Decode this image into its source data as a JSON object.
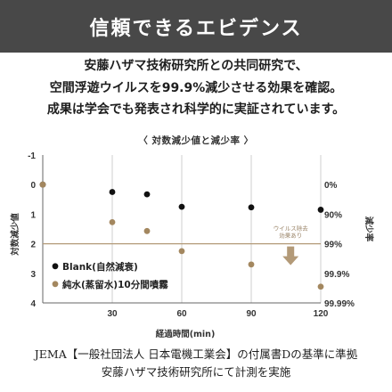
{
  "banner": {
    "title": "信頼できるエビデンス"
  },
  "intro": {
    "lines": [
      "安藤ハザマ技術研究所との共同研究で、",
      "空間浮遊ウイルスを99.9%減少させる効果を確認。",
      "成果は学会でも発表され科学的に実証されています。"
    ]
  },
  "footer": {
    "lines": [
      "JEMA【一般社団法人 日本電機工業会】の付属書Dの基準に準拠",
      "安藤ハザマ技術研究所にて計測を実施"
    ]
  },
  "colors": {
    "banner_bg": "#484848",
    "blank": "#111111",
    "treated": "#a3875f",
    "threshold": "#b39a78",
    "grid": "#cfcfcf"
  },
  "chart_data": {
    "type": "scatter",
    "title": "〈 対数減少値と減少率 〉",
    "xlabel": "経過時間(min)",
    "ylabel_left": "対数減少値",
    "ylabel_right": "減少率",
    "x_ticks": [
      0,
      30,
      60,
      90,
      120
    ],
    "xlim": [
      0,
      120
    ],
    "ylim": [
      -1,
      4
    ],
    "y_inverted": true,
    "y_ticks_left": [
      "-1",
      "0",
      "1",
      "2",
      "3",
      "4"
    ],
    "y_ticks_left_values": [
      -1,
      0,
      1,
      2,
      3,
      4
    ],
    "y_ticks_right": [
      "0%",
      "90%",
      "99%",
      "99.9%",
      "99.99%"
    ],
    "y_ticks_right_values": [
      0,
      1,
      2,
      3,
      4
    ],
    "grid": "vertical",
    "legend_position": "bottom-left",
    "threshold_line": {
      "y": 2
    },
    "annotation": {
      "lines": [
        "ウイルス除去",
        "効果あり"
      ],
      "x": 107,
      "y": 2
    },
    "series": [
      {
        "name": "Blank(自然減衰)",
        "marker": "black",
        "x": [
          0,
          30,
          45,
          60,
          90,
          120
        ],
        "y": [
          0,
          0.25,
          0.33,
          0.75,
          0.77,
          0.85
        ]
      },
      {
        "name": "純水(蒸留水)10分間噴霧",
        "marker": "gold",
        "x": [
          0,
          30,
          45,
          60,
          90,
          120
        ],
        "y": [
          0,
          1.27,
          1.57,
          2.25,
          2.7,
          3.45
        ]
      }
    ]
  }
}
